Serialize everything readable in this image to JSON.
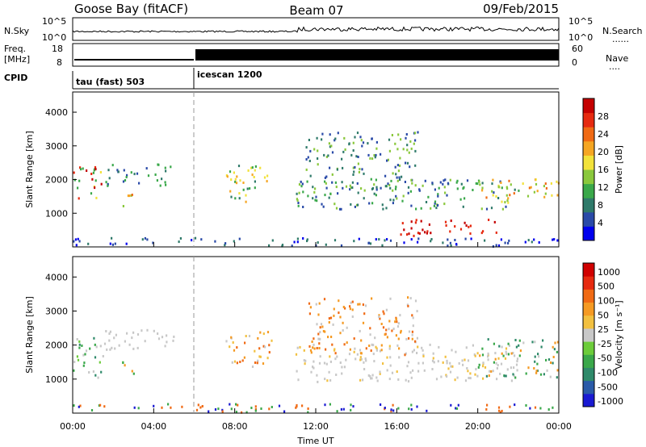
{
  "header": {
    "station": "Goose Bay (fitACF)",
    "beam": "Beam 07",
    "date": "09/Feb/2015"
  },
  "side_labels": {
    "nsky": "N.Sky",
    "freq_top": "Freq.",
    "freq_unit": "[MHz]",
    "cpid": "CPID",
    "nsearch": "N.Search",
    "nave": "Nave",
    "dots": "......",
    "dots_short": "...."
  },
  "noise_panel": {
    "left_ticks": [
      "10^5",
      "10^0"
    ],
    "right_ticks": [
      "10^5",
      "10^0"
    ]
  },
  "freq_panel": {
    "left_ticks": [
      "18",
      "8"
    ],
    "right_ticks": [
      "60",
      "0"
    ]
  },
  "cpid_panel": {
    "modes": [
      {
        "label": "tau (fast) 503",
        "start_hour": 0
      },
      {
        "label": "icescan 1200",
        "start_hour": 6
      }
    ]
  },
  "chart_data": [
    {
      "type": "heatmap",
      "name": "Power",
      "ylabel": "Slant Range [km]",
      "ylim": [
        0,
        4600
      ],
      "yticks": [
        "1000",
        "2000",
        "3000",
        "4000"
      ],
      "colorbar_label": "Power [dB]",
      "colorbar_ticks": [
        "4",
        "8",
        "12",
        "16",
        "20",
        "24",
        "28"
      ],
      "colors": [
        "#0000ee",
        "#2a4aa8",
        "#2f7a6a",
        "#3aa84a",
        "#8ac83c",
        "#f2e23a",
        "#f5a623",
        "#f06a14",
        "#e62a10",
        "#c40000"
      ]
    },
    {
      "type": "heatmap",
      "name": "Velocity",
      "ylabel": "Slant Range [km]",
      "ylim": [
        0,
        4600
      ],
      "yticks": [
        "1000",
        "2000",
        "3000",
        "4000"
      ],
      "colorbar_label": "Velocity [m s⁻¹]",
      "colorbar_ticks": [
        "1000",
        "500",
        "100",
        "50",
        "25",
        "-25",
        "-50",
        "-100",
        "-500",
        "-1000"
      ],
      "colors": [
        "#1a1ad2",
        "#2a5aa8",
        "#2f8a6a",
        "#3aa84a",
        "#6ccc3a",
        "#c8c8c8",
        "#f2c040",
        "#f59a23",
        "#f06a14",
        "#e62a10",
        "#d00000"
      ]
    }
  ],
  "xaxis": {
    "label": "Time UT",
    "ticks": [
      "00:00",
      "04:00",
      "08:00",
      "12:00",
      "16:00",
      "20:00",
      "00:00"
    ]
  }
}
